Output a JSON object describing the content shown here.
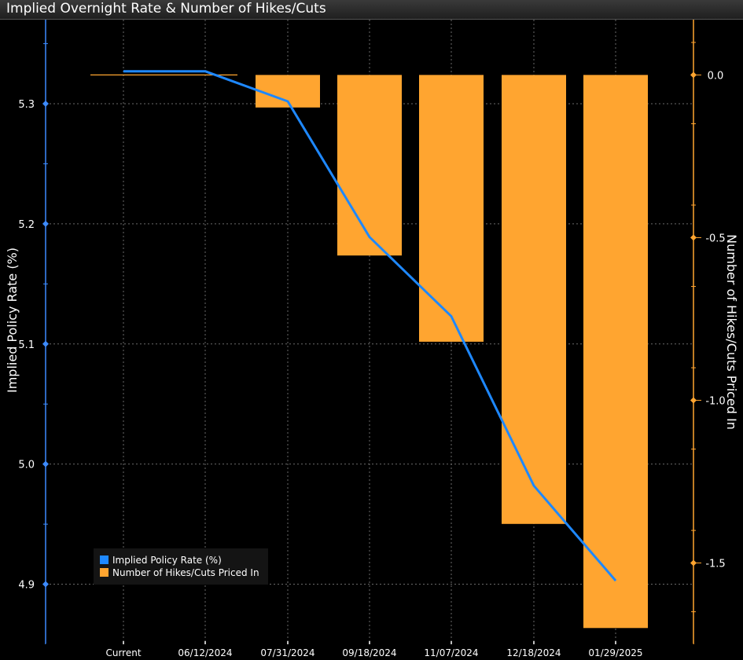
{
  "header": {
    "title": "Implied Overnight Rate & Number of Hikes/Cuts"
  },
  "colors": {
    "line": "#1e88ff",
    "bars": "#ffa530",
    "grid": "#6a6a6a",
    "axis_left": "#3d8bff",
    "axis_right": "#ffa530"
  },
  "legend": {
    "placement": "bottom-left",
    "items": [
      {
        "label": "Implied Policy Rate (%)",
        "color": "#1e88ff"
      },
      {
        "label": "Number of Hikes/Cuts Priced In",
        "color": "#ffa530"
      }
    ]
  },
  "chart_data": {
    "type": "bar+line",
    "title": "Implied Overnight Rate & Number of Hikes/Cuts",
    "categories": [
      "Current",
      "06/12/2024",
      "07/31/2024",
      "09/18/2024",
      "11/07/2024",
      "12/18/2024",
      "01/29/2025"
    ],
    "left_axis": {
      "label": "Implied Policy Rate (%)",
      "range": [
        4.85,
        5.37
      ],
      "ticks": [
        4.9,
        5.0,
        5.1,
        5.2,
        5.3
      ]
    },
    "right_axis": {
      "label": "Number of Hikes/Cuts Priced In",
      "range": [
        -1.75,
        0.17
      ],
      "ticks": [
        0.0,
        -0.5,
        -1.0,
        -1.5
      ],
      "tick_labels": [
        "0.0",
        "-0.5",
        "-1.0",
        "-1.5"
      ]
    },
    "series": [
      {
        "name": "Implied Policy Rate (%)",
        "type": "line",
        "axis": "left",
        "values": [
          5.327,
          5.327,
          5.302,
          5.189,
          5.123,
          4.982,
          4.903
        ]
      },
      {
        "name": "Number of Hikes/Cuts Priced In",
        "type": "bar",
        "axis": "right",
        "values": [
          0.0,
          0.0,
          -0.1,
          -0.555,
          -0.82,
          -1.38,
          -1.7
        ]
      }
    ],
    "grid": true
  }
}
